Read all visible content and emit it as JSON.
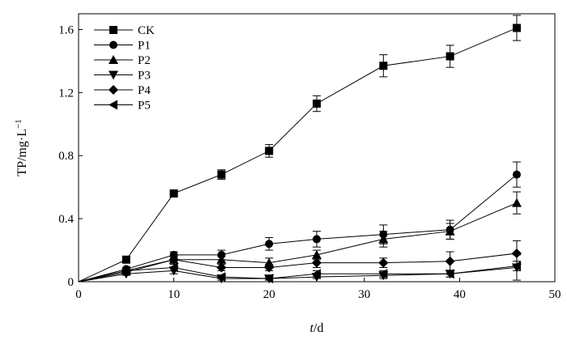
{
  "chart_data": {
    "type": "line",
    "xlabel": {
      "italic": "t",
      "rest": "/d"
    },
    "ylabel": {
      "base": "TP/mg·L",
      "sup": "−1"
    },
    "xlim": [
      0,
      50
    ],
    "ylim": [
      0,
      1.7
    ],
    "xticks": [
      0,
      10,
      20,
      30,
      40,
      50
    ],
    "xtick_labels": [
      "0",
      "10",
      "20",
      "30",
      "40",
      "50"
    ],
    "yticks": [
      0,
      0.4,
      0.8,
      1.2,
      1.6
    ],
    "ytick_labels": [
      "0",
      "0.4",
      "0.8",
      "1.2",
      "1.6"
    ],
    "grid": false,
    "legend_position": "top-left",
    "x": [
      0,
      5,
      10,
      15,
      20,
      25,
      32,
      39,
      46
    ],
    "series": [
      {
        "name": "CK",
        "marker": "square",
        "values": [
          0,
          0.14,
          0.56,
          0.68,
          0.83,
          1.13,
          1.37,
          1.43,
          1.61
        ],
        "errors": [
          0,
          0.02,
          0.02,
          0.03,
          0.04,
          0.05,
          0.07,
          0.07,
          0.08
        ]
      },
      {
        "name": "P1",
        "marker": "circle",
        "values": [
          0,
          0.08,
          0.17,
          0.17,
          0.24,
          0.27,
          0.3,
          0.33,
          0.68
        ],
        "errors": [
          0,
          0.01,
          0.02,
          0.03,
          0.04,
          0.05,
          0.06,
          0.06,
          0.08
        ]
      },
      {
        "name": "P2",
        "marker": "triangle-up",
        "values": [
          0,
          0.07,
          0.14,
          0.14,
          0.12,
          0.17,
          0.27,
          0.32,
          0.5
        ],
        "errors": [
          0,
          0.01,
          0.02,
          0.02,
          0.03,
          0.03,
          0.05,
          0.05,
          0.07
        ]
      },
      {
        "name": "P3",
        "marker": "triangle-down",
        "values": [
          0,
          0.05,
          0.07,
          0.02,
          0.02,
          0.03,
          0.04,
          0.05,
          0.09
        ],
        "errors": [
          0,
          0.01,
          0.02,
          0.01,
          0.01,
          0.01,
          0.02,
          0.02,
          0.08
        ]
      },
      {
        "name": "P4",
        "marker": "diamond",
        "values": [
          0,
          0.06,
          0.14,
          0.09,
          0.09,
          0.12,
          0.12,
          0.13,
          0.18
        ],
        "errors": [
          0,
          0.01,
          0.02,
          0.02,
          0.02,
          0.03,
          0.03,
          0.06,
          0.08
        ]
      },
      {
        "name": "P5",
        "marker": "triangle-left",
        "values": [
          0,
          0.07,
          0.09,
          0.03,
          0.02,
          0.05,
          0.05,
          0.05,
          0.1
        ],
        "errors": [
          0,
          0.01,
          0.02,
          0.01,
          0.01,
          0.02,
          0.02,
          0.02,
          0.03
        ]
      }
    ]
  }
}
